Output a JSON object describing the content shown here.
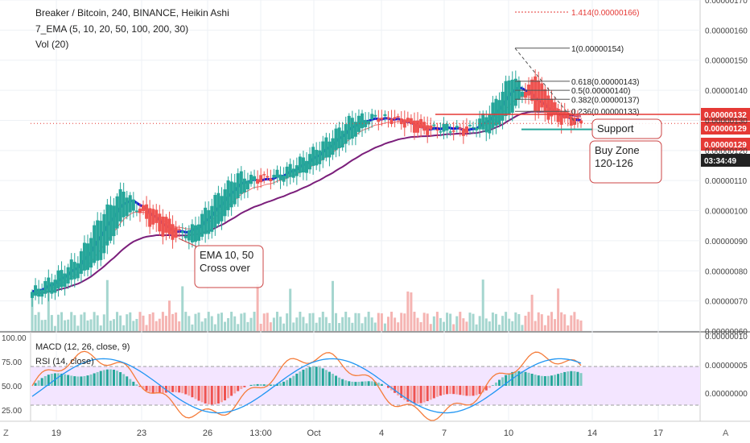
{
  "header": {
    "title": "Breaker / Bitcoin, 240, BINANCE, Heikin Ashi",
    "ema_label": "7_EMA (5, 10, 20, 50, 100, 200, 30)",
    "vol_label": "Vol (20)"
  },
  "lower_panel": {
    "macd_label": "MACD (12, 26, close, 9)",
    "rsi_label": "RSI (14, close)"
  },
  "colors": {
    "up": "#26a69a",
    "down": "#ef5350",
    "ema_fast": "#1515d6",
    "ema_mid": "#ef6c6c",
    "ema_slow": "#7b1f7b",
    "rsi_band": "#f3e5ff",
    "support_line": "#26a69a",
    "resistance_line": "#e53935",
    "annotation_border": "#c44",
    "price_badge_red": "#e53935"
  },
  "chart_data": {
    "type": "candlestick",
    "ylim": [
      6e-07,
      1.7e-06
    ],
    "y_ticks": [
      "0.00000170",
      "0.00000160",
      "0.00000150",
      "0.00000140",
      "0.00000130",
      "0.00000120",
      "0.00000110",
      "0.00000100",
      "0.00000090",
      "0.00000080",
      "0.00000070",
      "0.00000060"
    ],
    "x_ticks": [
      "19",
      "23",
      "26",
      "13:00",
      "Oct",
      "4",
      "7",
      "10",
      "14",
      "17"
    ],
    "candles": [
      {
        "x": "19",
        "open": 7.1e-07,
        "close": 7.3e-07
      },
      {
        "x": "20",
        "open": 7.3e-07,
        "close": 7.8e-07
      },
      {
        "x": "21",
        "open": 7.8e-07,
        "close": 8.4e-07
      },
      {
        "x": "22",
        "open": 8.4e-07,
        "close": 9.8e-07
      },
      {
        "x": "23",
        "open": 9.8e-07,
        "close": 1.07e-06
      },
      {
        "x": "24",
        "open": 1.02e-06,
        "close": 9.7e-07
      },
      {
        "x": "25",
        "open": 9.7e-07,
        "close": 9.1e-07
      },
      {
        "x": "26",
        "open": 8.9e-07,
        "close": 9.4e-07
      },
      {
        "x": "27",
        "open": 9.4e-07,
        "close": 1.04e-06
      },
      {
        "x": "28",
        "open": 1.04e-06,
        "close": 1.12e-06
      },
      {
        "x": "29",
        "open": 1.12e-06,
        "close": 1.1e-06
      },
      {
        "x": "30",
        "open": 1.1e-06,
        "close": 1.13e-06
      },
      {
        "x": "Oct",
        "open": 1.13e-06,
        "close": 1.18e-06
      },
      {
        "x": "2",
        "open": 1.18e-06,
        "close": 1.24e-06
      },
      {
        "x": "3",
        "open": 1.24e-06,
        "close": 1.31e-06
      },
      {
        "x": "4",
        "open": 1.31e-06,
        "close": 1.31e-06
      },
      {
        "x": "5",
        "open": 1.31e-06,
        "close": 1.3e-06
      },
      {
        "x": "6",
        "open": 1.3e-06,
        "close": 1.26e-06
      },
      {
        "x": "7",
        "open": 1.26e-06,
        "close": 1.28e-06
      },
      {
        "x": "8",
        "open": 1.28e-06,
        "close": 1.26e-06
      },
      {
        "x": "9",
        "open": 1.26e-06,
        "close": 1.33e-06
      },
      {
        "x": "10",
        "open": 1.33e-06,
        "close": 1.45e-06
      },
      {
        "x": "11",
        "open": 1.45e-06,
        "close": 1.34e-06
      },
      {
        "x": "12",
        "open": 1.34e-06,
        "close": 1.3e-06
      },
      {
        "x": "13",
        "open": 1.3e-06,
        "close": 1.29e-06
      }
    ],
    "fib_levels": [
      {
        "label": "1.414(0.00000166)",
        "value": 1.66e-06
      },
      {
        "label": "1(0.00000154)",
        "value": 1.54e-06
      },
      {
        "label": "0.618(0.00000143)",
        "value": 1.43e-06
      },
      {
        "label": "0.5(0.00000140)",
        "value": 1.4e-06
      },
      {
        "label": "0.382(0.00000137)",
        "value": 1.37e-06
      },
      {
        "label": "0.236(0.00000133)",
        "value": 1.33e-06
      }
    ],
    "price_badges": [
      {
        "label": "0.00000132",
        "value": 1.32e-06,
        "color": "#e53935"
      },
      {
        "label": "0.00000129",
        "value": 1.29e-06,
        "color": "#e53935"
      },
      {
        "label": "0.00000129",
        "value": 1.24e-06,
        "color": "#e53935"
      },
      {
        "label": "03:34:49",
        "value": 1.17e-06,
        "color": "#222"
      }
    ],
    "annotations": [
      {
        "text": "Support"
      },
      {
        "text": "Buy Zone\n120-126"
      },
      {
        "text": "EMA 10, 50\nCross over"
      }
    ],
    "lower_y_ticks_left": [
      "100.00",
      "75.00",
      "50.00",
      "25.00"
    ],
    "lower_y_ticks_right": [
      "0.00000010",
      "0.00000005",
      "0.00000000"
    ]
  },
  "toolbar": {
    "zoom_left": "Z",
    "axis_mode": "A"
  }
}
